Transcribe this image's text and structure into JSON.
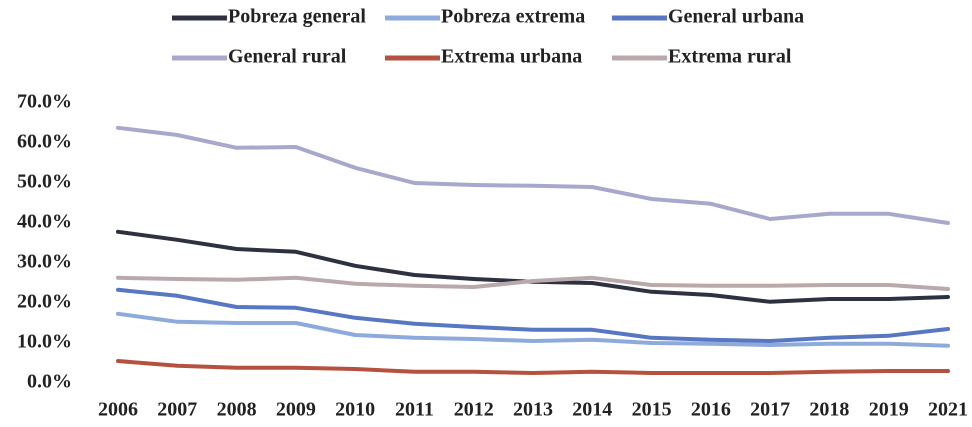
{
  "chart_data": {
    "type": "line",
    "categories": [
      "2006",
      "2007",
      "2008",
      "2009",
      "2010",
      "2011",
      "2012",
      "2013",
      "2014",
      "2015",
      "2016",
      "2017",
      "2018",
      "2019",
      "2021"
    ],
    "series": [
      {
        "name": "Pobreza general",
        "color": "#2e3140",
        "values": [
          37.8,
          35.8,
          33.5,
          32.8,
          29.3,
          27.0,
          26.0,
          25.3,
          25.0,
          22.8,
          22.0,
          20.3,
          21.0,
          21.0,
          21.5
        ]
      },
      {
        "name": "Pobreza extrema",
        "color": "#8eaadc",
        "values": [
          17.3,
          15.3,
          15.0,
          15.0,
          12.0,
          11.3,
          11.0,
          10.5,
          10.8,
          10.0,
          9.8,
          9.5,
          9.8,
          9.8,
          9.3
        ]
      },
      {
        "name": "General urbana",
        "color": "#5877c2",
        "values": [
          23.3,
          21.8,
          19.0,
          18.8,
          16.3,
          14.8,
          14.0,
          13.3,
          13.3,
          11.3,
          10.8,
          10.5,
          11.3,
          11.8,
          13.5
        ]
      },
      {
        "name": "General rural",
        "color": "#a8a8cc",
        "values": [
          63.8,
          62.0,
          58.8,
          59.0,
          53.8,
          50.0,
          49.5,
          49.3,
          49.0,
          46.0,
          44.8,
          41.0,
          42.3,
          42.3,
          40.0
        ]
      },
      {
        "name": "Extrema urbana",
        "color": "#b5523f",
        "values": [
          5.5,
          4.3,
          3.8,
          3.8,
          3.5,
          2.8,
          2.8,
          2.5,
          2.8,
          2.5,
          2.5,
          2.5,
          2.8,
          3.0,
          3.0
        ]
      },
      {
        "name": "Extrema rural",
        "color": "#b9a9ab",
        "values": [
          26.3,
          26.0,
          25.8,
          26.3,
          24.8,
          24.3,
          24.0,
          25.5,
          26.3,
          24.5,
          24.3,
          24.3,
          24.5,
          24.5,
          23.5
        ]
      }
    ],
    "ylim": [
      0,
      70
    ],
    "yticks": [
      {
        "value": 0,
        "label": "0.0%"
      },
      {
        "value": 10,
        "label": "10.0%"
      },
      {
        "value": 20,
        "label": "20.0%"
      },
      {
        "value": 30,
        "label": "30.0%"
      },
      {
        "value": 40,
        "label": "40.0%"
      },
      {
        "value": 50,
        "label": "50.0%"
      },
      {
        "value": 60,
        "label": "60.0%"
      },
      {
        "value": 70,
        "label": "70.0%"
      }
    ],
    "grid": false
  }
}
